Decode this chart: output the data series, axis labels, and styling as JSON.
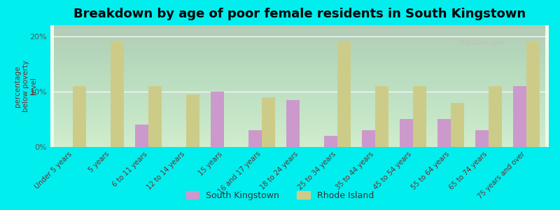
{
  "title": "Breakdown by age of poor female residents in South Kingstown",
  "ylabel": "percentage\nbelow poverty\nlevel",
  "categories": [
    "Under 5 years",
    "5 years",
    "6 to 11 years",
    "12 to 14 years",
    "15 years",
    "16 and 17 years",
    "18 to 24 years",
    "25 to 34 years",
    "35 to 44 years",
    "45 to 54 years",
    "55 to 64 years",
    "65 to 74 years",
    "75 years and over"
  ],
  "south_kingstown": [
    0,
    0,
    4,
    0,
    10,
    3,
    8.5,
    2,
    3,
    5,
    5,
    3,
    11
  ],
  "rhode_island": [
    11,
    19,
    11,
    9.5,
    0,
    9,
    0,
    19,
    11,
    11,
    8,
    11,
    19
  ],
  "sk_color": "#cc99cc",
  "ri_color": "#cccc88",
  "background_top": "#f5fff0",
  "background_bottom": "#e0f5d0",
  "outer_background": "#00eeee",
  "ylim": [
    0,
    22
  ],
  "yticks": [
    0,
    10,
    20
  ],
  "ytick_labels": [
    "0%",
    "10%",
    "20%"
  ],
  "title_fontsize": 13,
  "legend_labels": [
    "South Kingstown",
    "Rhode Island"
  ],
  "watermark": "City-Data.com"
}
